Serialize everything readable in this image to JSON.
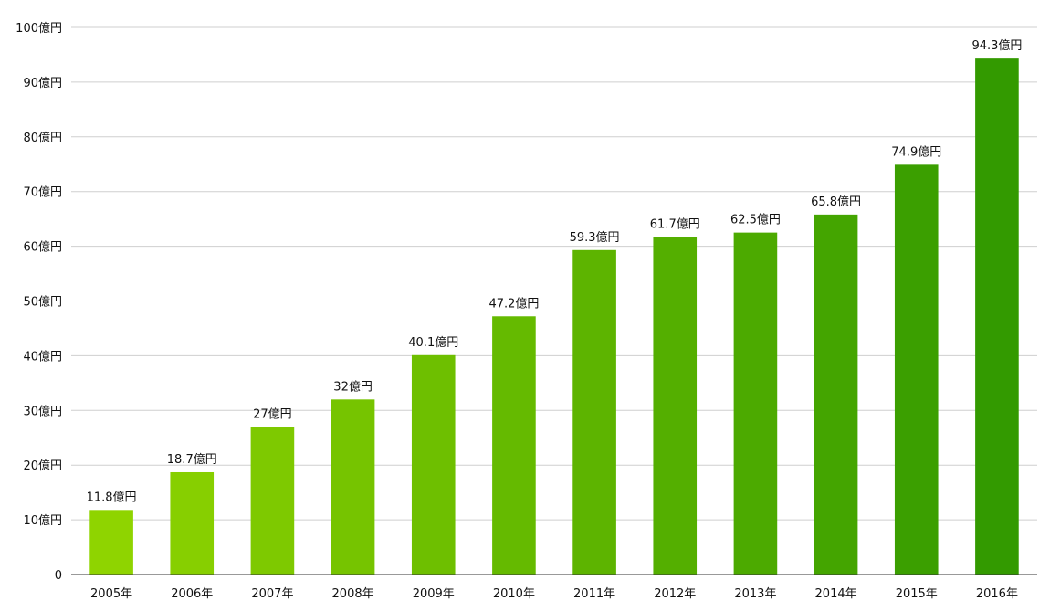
{
  "chart_data": {
    "type": "bar",
    "title": "",
    "xlabel": "",
    "ylabel": "",
    "ylim": [
      0,
      100
    ],
    "grid": true,
    "categories": [
      "2005年",
      "2006年",
      "2007年",
      "2008年",
      "2009年",
      "2010年",
      "2011年",
      "2012年",
      "2013年",
      "2014年",
      "2015年",
      "2016年"
    ],
    "values": [
      11.8,
      18.7,
      27,
      32,
      40.1,
      47.2,
      59.3,
      61.7,
      62.5,
      65.8,
      74.9,
      94.3
    ],
    "value_labels": [
      "11.8億円",
      "18.7億円",
      "27億円",
      "32億円",
      "40.1億円",
      "47.2億円",
      "59.3億円",
      "61.7億円",
      "62.5億円",
      "65.8億円",
      "74.9億円",
      "94.3億円"
    ],
    "y_ticks": [
      0,
      10,
      20,
      30,
      40,
      50,
      60,
      70,
      80,
      90,
      100
    ],
    "y_tick_labels": [
      "0",
      "10億円",
      "20億円",
      "30億円",
      "40億円",
      "50億円",
      "60億円",
      "70億円",
      "80億円",
      "90億円",
      "100億円"
    ],
    "colors": {
      "bar_start": "#8fd400",
      "bar_end": "#339a00",
      "grid": "#cfcfcf",
      "axis": "#333333"
    }
  }
}
